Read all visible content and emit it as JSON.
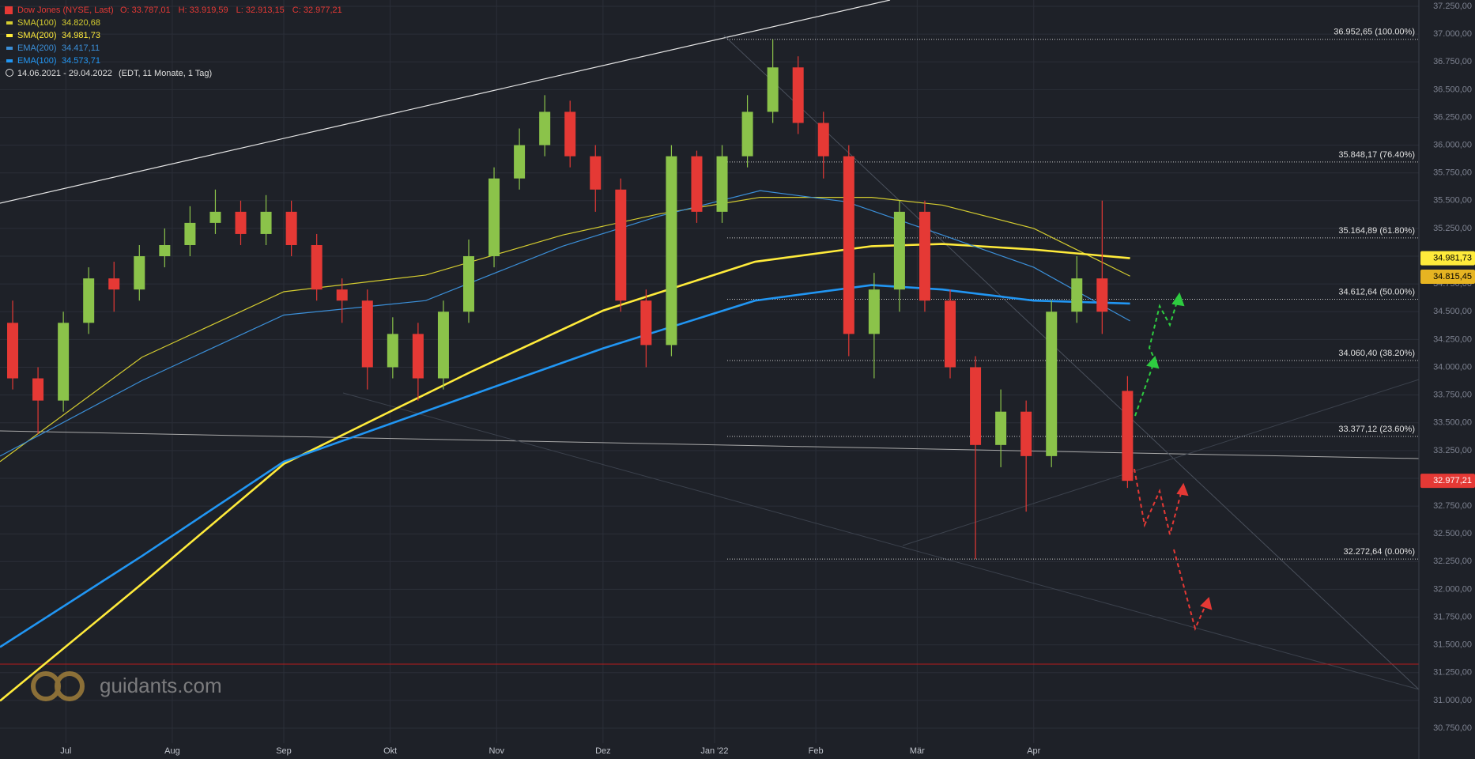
{
  "chart_data": {
    "type": "candlestick",
    "title": "Dow Jones (NYSE, Last)",
    "ohlc_texts": [
      "O: 33.787,01",
      "H: 33.919,59",
      "L: 32.913,15",
      "C: 32.977,21"
    ],
    "period": "14.06.2021 - 29.04.2022",
    "period_note": "(EDT, 11 Monate, 1 Tag)",
    "watermark": "guidants.com",
    "up_color": "#8bc34a",
    "down_color": "#e53935",
    "xlim": [
      0,
      280
    ],
    "xticks": [
      {
        "value": 13,
        "label": "Jul"
      },
      {
        "value": 34,
        "label": "Aug"
      },
      {
        "value": 56,
        "label": "Sep"
      },
      {
        "value": 77,
        "label": "Okt"
      },
      {
        "value": 98,
        "label": "Nov"
      },
      {
        "value": 119,
        "label": "Dez"
      },
      {
        "value": 141,
        "label": "Jan '22"
      },
      {
        "value": 161,
        "label": "Feb"
      },
      {
        "value": 181,
        "label": "Mär"
      },
      {
        "value": 204,
        "label": "Apr"
      }
    ],
    "ylim": [
      30600,
      37300
    ],
    "yticks": [
      {
        "value": 37250,
        "label": "37.250,00"
      },
      {
        "value": 37000,
        "label": "37.000,00"
      },
      {
        "value": 36750,
        "label": "36.750,00"
      },
      {
        "value": 36500,
        "label": "36.500,00"
      },
      {
        "value": 36250,
        "label": "36.250,00"
      },
      {
        "value": 36000,
        "label": "36.000,00"
      },
      {
        "value": 35750,
        "label": "35.750,00"
      },
      {
        "value": 35500,
        "label": "35.500,00"
      },
      {
        "value": 35250,
        "label": "35.250,00"
      },
      {
        "value": 35000,
        "label": "35.000,00"
      },
      {
        "value": 34750,
        "label": "34.750,00"
      },
      {
        "value": 34500,
        "label": "34.500,00"
      },
      {
        "value": 34250,
        "label": "34.250,00"
      },
      {
        "value": 34000,
        "label": "34.000,00"
      },
      {
        "value": 33750,
        "label": "33.750,00"
      },
      {
        "value": 33500,
        "label": "33.500,00"
      },
      {
        "value": 33250,
        "label": "33.250,00"
      },
      {
        "value": 33000,
        "label": "33.000,00"
      },
      {
        "value": 32750,
        "label": "32.750,00"
      },
      {
        "value": 32500,
        "label": "32.500,00"
      },
      {
        "value": 32250,
        "label": "32.250,00"
      },
      {
        "value": 32000,
        "label": "32.000,00"
      },
      {
        "value": 31750,
        "label": "31.750,00"
      },
      {
        "value": 31500,
        "label": "31.500,00"
      },
      {
        "value": 31250,
        "label": "31.250,00"
      },
      {
        "value": 31000,
        "label": "31.000,00"
      },
      {
        "value": 30750,
        "label": "30.750,00"
      }
    ],
    "grid": true,
    "candles": {
      "x": [
        2.5,
        7.5,
        12.5,
        17.5,
        22.5,
        27.5,
        32.5,
        37.5,
        42.5,
        47.5,
        52.5,
        57.5,
        62.5,
        67.5,
        72.5,
        77.5,
        82.5,
        87.5,
        92.5,
        97.5,
        102.5,
        107.5,
        112.5,
        117.5,
        122.5,
        127.5,
        132.5,
        137.5,
        142.5,
        147.5,
        152.5,
        157.5,
        162.5,
        167.5,
        172.5,
        177.5,
        182.5,
        187.5,
        192.5,
        197.5,
        202.5,
        207.5,
        212.5,
        217.5,
        222.5
      ],
      "open": [
        34400,
        33900,
        33700,
        34400,
        34800,
        34700,
        35000,
        35100,
        35300,
        35400,
        35200,
        35400,
        35100,
        34700,
        34600,
        34000,
        34300,
        33900,
        34500,
        35000,
        35700,
        36000,
        36300,
        35900,
        35600,
        34600,
        34200,
        35900,
        35400,
        35900,
        36300,
        36700,
        36200,
        35900,
        34300,
        34700,
        35400,
        34600,
        34000,
        33300,
        33600,
        33200,
        34500,
        34800,
        33787.01
      ],
      "high": [
        34600,
        34000,
        34500,
        34900,
        34950,
        35100,
        35250,
        35450,
        35600,
        35500,
        35550,
        35500,
        35200,
        34800,
        34700,
        34450,
        34400,
        34600,
        35150,
        35800,
        36150,
        36450,
        36400,
        36000,
        35700,
        34700,
        36000,
        35950,
        36000,
        36450,
        36952.65,
        36800,
        36300,
        36000,
        34850,
        35500,
        35500,
        34700,
        34100,
        33800,
        33700,
        34600,
        35000,
        35500,
        33919.59
      ],
      "low": [
        33800,
        33400,
        33600,
        34300,
        34500,
        34600,
        34900,
        35000,
        35200,
        35100,
        35100,
        35000,
        34600,
        34400,
        33800,
        33900,
        33700,
        33800,
        34400,
        34900,
        35600,
        35900,
        35800,
        35400,
        34500,
        34000,
        34100,
        35300,
        35300,
        35800,
        36200,
        36100,
        35700,
        34100,
        33900,
        34500,
        34500,
        33900,
        32272.64,
        33100,
        32700,
        33100,
        34400,
        34300,
        32913.15
      ],
      "close": [
        33900,
        33700,
        34400,
        34800,
        34700,
        35000,
        35100,
        35300,
        35400,
        35200,
        35400,
        35100,
        34700,
        34600,
        34000,
        34300,
        33900,
        34500,
        35000,
        35700,
        36000,
        36300,
        35900,
        35600,
        34600,
        34200,
        35900,
        35400,
        35900,
        36300,
        36700,
        36200,
        35900,
        34300,
        34700,
        35400,
        34600,
        34000,
        33300,
        33600,
        33200,
        34500,
        34800,
        34500,
        32977.21
      ]
    },
    "series": [
      {
        "name": "SMA(100)",
        "value_label": "34.820,68",
        "color": "#d4cc30",
        "width": 1.2,
        "x": [
          0,
          28,
          56,
          84,
          111,
          130,
          150,
          172,
          186,
          204,
          223
        ],
        "values": [
          33150,
          34090,
          34680,
          34830,
          35190,
          35380,
          35530,
          35530,
          35460,
          35250,
          34820.68
        ]
      },
      {
        "name": "SMA(200)",
        "value_label": "34.981,73",
        "color": "#ffeb3b",
        "width": 2.6,
        "x": [
          0,
          28,
          56,
          93,
          119,
          149,
          172,
          186,
          204,
          223
        ],
        "values": [
          30996,
          32050,
          33130,
          33960,
          34510,
          34950,
          35090,
          35110,
          35060,
          34981.73
        ]
      },
      {
        "name": "EMA(200)",
        "value_label": "34.417,11",
        "color": "#3b8fd8",
        "width": 1.2,
        "x": [
          0,
          28,
          56,
          84,
          111,
          130,
          150,
          167,
          186,
          204,
          223
        ],
        "values": [
          33200,
          33880,
          34470,
          34600,
          35090,
          35360,
          35590,
          35490,
          35190,
          34900,
          34417.11
        ]
      },
      {
        "name": "EMA(100)",
        "value_label": "34.573,71",
        "color": "#2196f3",
        "width": 2.6,
        "x": [
          0,
          28,
          56,
          93,
          119,
          149,
          172,
          186,
          204,
          223
        ],
        "values": [
          31480,
          32300,
          33150,
          33750,
          34170,
          34600,
          34740,
          34700,
          34600,
          34573.71
        ]
      }
    ],
    "fib_levels": [
      {
        "value": 36952.65,
        "label": "36.952,65 (100.00%)"
      },
      {
        "value": 35848.17,
        "label": "35.848,17 (76.40%)"
      },
      {
        "value": 35164.89,
        "label": "35.164,89 (61.80%)"
      },
      {
        "value": 34612.64,
        "label": "34.612,64 (50.00%)"
      },
      {
        "value": 34060.4,
        "label": "34.060,40 (38.20%)"
      },
      {
        "value": 33377.12,
        "label": "33.377,12 (23.60%)"
      },
      {
        "value": 32272.64,
        "label": "32.272,64 (0.00%)"
      }
    ],
    "price_tags": [
      {
        "value": 34981.73,
        "label": "34.981,73",
        "color": "#ffeb3b",
        "text_color": "#000000"
      },
      {
        "value": 34815.45,
        "label": "34.815,45",
        "color": "#e6b422",
        "text_color": "#000000"
      },
      {
        "value": 32977.21,
        "label": "32.977,21",
        "color": "#e53935",
        "text_color": "#ffffff"
      }
    ]
  }
}
